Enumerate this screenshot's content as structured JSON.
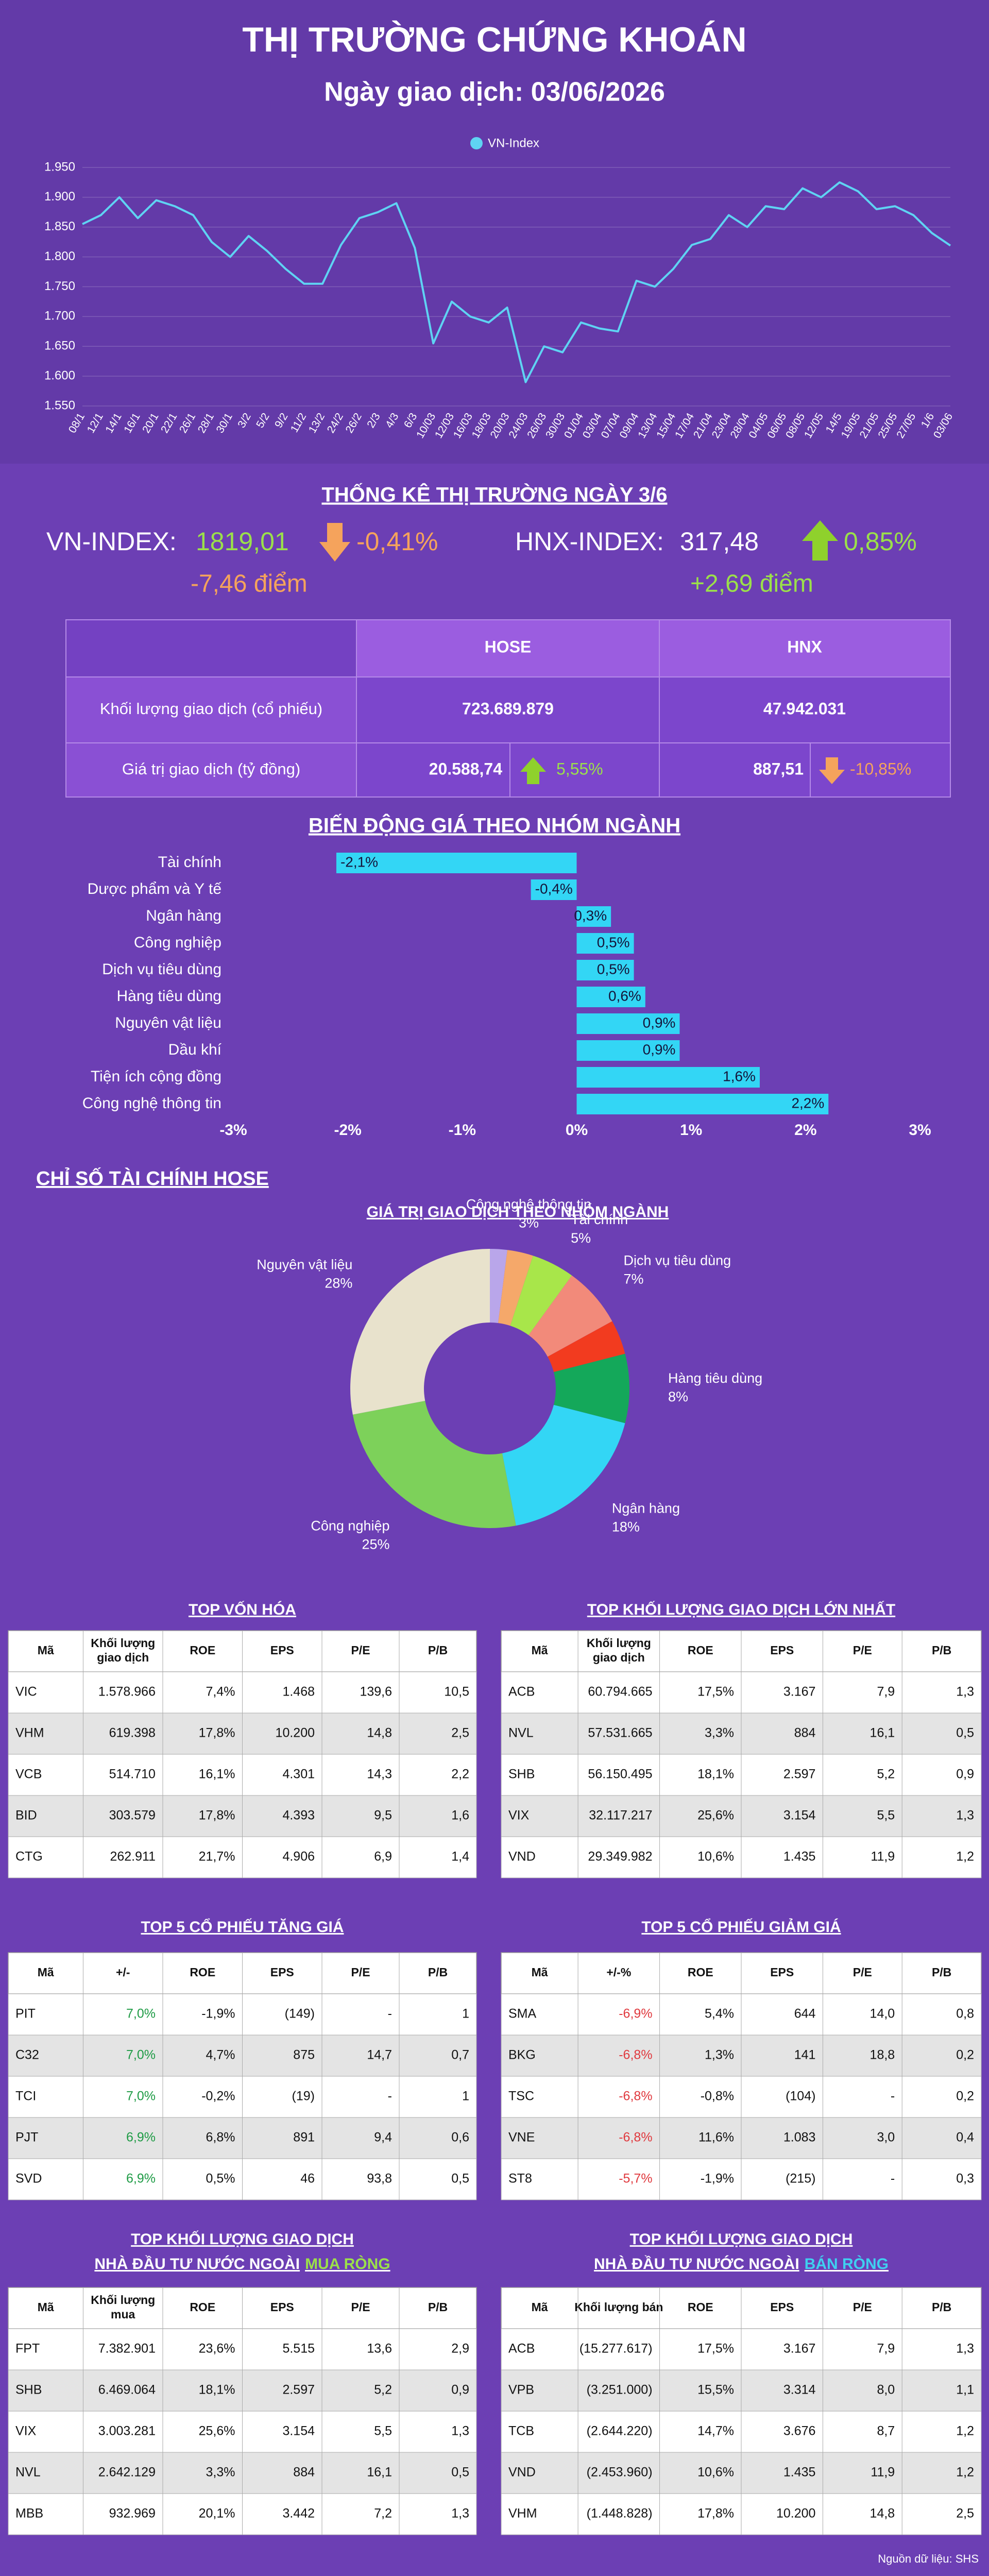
{
  "header": {
    "title": "THỊ TRƯỜNG CHỨNG KHOÁN",
    "subtitle": "Ngày giao dịch: 03/06/2026"
  },
  "chart_data": [
    {
      "type": "line",
      "categories": [
        "08/1",
        "12/1",
        "14/1",
        "16/1",
        "20/1",
        "22/1",
        "26/1",
        "28/1",
        "30/1",
        "3/2",
        "5/2",
        "9/2",
        "11/2",
        "13/2",
        "24/2",
        "26/2",
        "2/3",
        "4/3",
        "6/3",
        "10/03",
        "12/03",
        "16/03",
        "18/03",
        "20/03",
        "24/03",
        "26/03",
        "30/03",
        "01/04",
        "03/04",
        "07/04",
        "09/04",
        "13/04",
        "15/04",
        "17/04",
        "21/04",
        "23/04",
        "28/04",
        "04/05",
        "06/05",
        "08/05",
        "12/05",
        "14/5",
        "19/05",
        "21/05",
        "25/05",
        "27/05",
        "1/6",
        "03/06"
      ],
      "series": [
        {
          "name": "VN-Index",
          "color": "#5fd3f3",
          "values": [
            1855,
            1870,
            1900,
            1865,
            1895,
            1885,
            1870,
            1825,
            1800,
            1835,
            1810,
            1780,
            1755,
            1755,
            1820,
            1865,
            1875,
            1890,
            1815,
            1655,
            1725,
            1700,
            1690,
            1715,
            1590,
            1650,
            1640,
            1690,
            1680,
            1675,
            1760,
            1750,
            1780,
            1820,
            1830,
            1870,
            1850,
            1885,
            1880,
            1915,
            1900,
            1925,
            1910,
            1880,
            1885,
            1870,
            1840,
            1819.01
          ]
        }
      ],
      "ylim": [
        1550,
        1950
      ],
      "yticks": [
        {
          "value": 1550,
          "label": "1.550"
        },
        {
          "value": 1600,
          "label": "1.600"
        },
        {
          "value": 1650,
          "label": "1.650"
        },
        {
          "value": 1700,
          "label": "1.700"
        },
        {
          "value": 1750,
          "label": "1.750"
        },
        {
          "value": 1800,
          "label": "1.800"
        },
        {
          "value": 1850,
          "label": "1.850"
        },
        {
          "value": 1900,
          "label": "1.900"
        },
        {
          "value": 1950,
          "label": "1.950"
        }
      ],
      "grid": true,
      "legend": "top"
    },
    {
      "type": "bar",
      "orientation": "horizontal",
      "title": "BIẾN ĐỘNG GIÁ THEO NHÓM NGÀNH",
      "categories": [
        "Tài chính",
        "Dược phẩm và Y tế",
        "Ngân hàng",
        "Công nghiệp",
        "Dịch vụ tiêu dùng",
        "Hàng tiêu dùng",
        "Nguyên vật liệu",
        "Dầu khí",
        "Tiện ích cộng đồng",
        "Công nghệ thông tin"
      ],
      "values": [
        -2.1,
        -0.4,
        0.3,
        0.5,
        0.5,
        0.6,
        0.9,
        0.9,
        1.6,
        2.2
      ],
      "value_labels": [
        "-2,1%",
        "-0,4%",
        "0,3%",
        "0,5%",
        "0,5%",
        "0,6%",
        "0,9%",
        "0,9%",
        "1,6%",
        "2,2%"
      ],
      "color": "#33d6f5",
      "xlim": [
        -3,
        3
      ],
      "xticks": [
        {
          "value": -3,
          "label": "-3%"
        },
        {
          "value": -2,
          "label": "-2%"
        },
        {
          "value": -1,
          "label": "-1%"
        },
        {
          "value": 0,
          "label": "0%"
        },
        {
          "value": 1,
          "label": "1%"
        },
        {
          "value": 2,
          "label": "2%"
        },
        {
          "value": 3,
          "label": "3%"
        }
      ]
    },
    {
      "type": "pie",
      "title": "GIÁ TRỊ GIAO DỊCH THEO NHÓM NGÀNH",
      "categories": [
        null,
        "Công nghệ thông tin",
        "Tài chính",
        "Dịch vụ tiêu dùng",
        null,
        "Hàng tiêu dùng",
        "Ngân hàng",
        "Công nghiệp",
        "Nguyên vật liệu"
      ],
      "values": [
        2,
        3,
        5,
        7,
        4,
        8,
        18,
        25,
        28
      ],
      "value_labels": [
        null,
        "3%",
        "5%",
        "7%",
        null,
        "8%",
        "18%",
        "25%",
        "28%"
      ],
      "colors": [
        "#b9a6ea",
        "#f5a86a",
        "#a8e64a",
        "#f28a7a",
        "#f23b1f",
        "#14a85a",
        "#33d6f5",
        "#7dd15a",
        "#e8e2cc"
      ]
    }
  ],
  "market_stats": {
    "title": "THỐNG KÊ THỊ TRƯỜNG NGÀY 3/6",
    "vn_index": {
      "label": "VN-INDEX:",
      "value": "1819,01",
      "change_pct": "-0,41%",
      "change_points": "-7,46 điểm"
    },
    "hnx_index": {
      "label": "HNX-INDEX:",
      "value": "317,48",
      "change_pct": "0,85%",
      "change_points": "+2,69 điểm"
    }
  },
  "summary_table": {
    "headers": [
      "HOSE",
      "HNX"
    ],
    "rows": [
      {
        "label": "Khối lượng giao dịch (cổ phiếu)",
        "hose": "723.689.879",
        "hnx": "47.942.031"
      },
      {
        "label": "Giá trị giao dịch (tỷ đồng)",
        "hose": "20.588,74",
        "hose_change": "5,55%",
        "hnx": "887,51",
        "hnx_change": "-10,85%"
      }
    ]
  },
  "section_heading": "CHỈ SỐ TÀI CHÍNH HOSE",
  "tables": [
    {
      "title": "TOP VỐN HÓA",
      "headers": [
        [
          "Mã"
        ],
        [
          "Khối lượng",
          "giao dịch"
        ],
        [
          "ROE"
        ],
        [
          "EPS"
        ],
        [
          "P/E"
        ],
        [
          "P/B"
        ]
      ],
      "rows": [
        [
          "VIC",
          "1.578.966",
          "7,4%",
          "1.468",
          "139,6",
          "10,5"
        ],
        [
          "VHM",
          "619.398",
          "17,8%",
          "10.200",
          "14,8",
          "2,5"
        ],
        [
          "VCB",
          "514.710",
          "16,1%",
          "4.301",
          "14,3",
          "2,2"
        ],
        [
          "BID",
          "303.579",
          "17,8%",
          "4.393",
          "9,5",
          "1,6"
        ],
        [
          "CTG",
          "262.911",
          "21,7%",
          "4.906",
          "6,9",
          "1,4"
        ]
      ]
    },
    {
      "title": "TOP KHỐI LƯỢNG GIAO DỊCH LỚN NHẤT",
      "headers": [
        [
          "Mã"
        ],
        [
          "Khối lượng",
          "giao dịch"
        ],
        [
          "ROE"
        ],
        [
          "EPS"
        ],
        [
          "P/E"
        ],
        [
          "P/B"
        ]
      ],
      "rows": [
        [
          "ACB",
          "60.794.665",
          "17,5%",
          "3.167",
          "7,9",
          "1,3"
        ],
        [
          "NVL",
          "57.531.665",
          "3,3%",
          "884",
          "16,1",
          "0,5"
        ],
        [
          "SHB",
          "56.150.495",
          "18,1%",
          "2.597",
          "5,2",
          "0,9"
        ],
        [
          "VIX",
          "32.117.217",
          "25,6%",
          "3.154",
          "5,5",
          "1,3"
        ],
        [
          "VND",
          "29.349.982",
          "10,6%",
          "1.435",
          "11,9",
          "1,2"
        ]
      ]
    },
    {
      "title": "TOP 5 CỔ PHIẾU TĂNG GIÁ",
      "change_color": "#1e9b45",
      "headers": [
        [
          "Mã"
        ],
        [
          "+/-"
        ],
        [
          "ROE"
        ],
        [
          "EPS"
        ],
        [
          "P/E"
        ],
        [
          "P/B"
        ]
      ],
      "rows": [
        [
          "PIT",
          "7,0%",
          "-1,9%",
          "(149)",
          "-",
          "1"
        ],
        [
          "C32",
          "7,0%",
          "4,7%",
          "875",
          "14,7",
          "0,7"
        ],
        [
          "TCI",
          "7,0%",
          "-0,2%",
          "(19)",
          "-",
          "1"
        ],
        [
          "PJT",
          "6,9%",
          "6,8%",
          "891",
          "9,4",
          "0,6"
        ],
        [
          "SVD",
          "6,9%",
          "0,5%",
          "46",
          "93,8",
          "0,5"
        ]
      ]
    },
    {
      "title": "TOP 5 CỔ PHIẾU GIẢM GIÁ",
      "change_color": "#e0393e",
      "headers": [
        [
          "Mã"
        ],
        [
          "+/-%"
        ],
        [
          "ROE"
        ],
        [
          "EPS"
        ],
        [
          "P/E"
        ],
        [
          "P/B"
        ]
      ],
      "rows": [
        [
          "SMA",
          "-6,9%",
          "5,4%",
          "644",
          "14,0",
          "0,8"
        ],
        [
          "BKG",
          "-6,8%",
          "1,3%",
          "141",
          "18,8",
          "0,2"
        ],
        [
          "TSC",
          "-6,8%",
          "-0,8%",
          "(104)",
          "-",
          "0,2"
        ],
        [
          "VNE",
          "-6,8%",
          "11,6%",
          "1.083",
          "3,0",
          "0,4"
        ],
        [
          "ST8",
          "-5,7%",
          "-1,9%",
          "(215)",
          "-",
          "0,3"
        ]
      ]
    },
    {
      "title_lines": [
        "TOP KHỐI LƯỢNG GIAO DỊCH",
        "NHÀ ĐẦU TƯ NƯỚC NGOÀI"
      ],
      "title_highlight": "MUA RÒNG",
      "highlight_color": "#9be04a",
      "headers": [
        [
          "Mã"
        ],
        [
          "Khối lượng",
          "mua"
        ],
        [
          "ROE"
        ],
        [
          "EPS"
        ],
        [
          "P/E"
        ],
        [
          "P/B"
        ]
      ],
      "rows": [
        [
          "FPT",
          "7.382.901",
          "23,6%",
          "5.515",
          "13,6",
          "2,9"
        ],
        [
          "SHB",
          "6.469.064",
          "18,1%",
          "2.597",
          "5,2",
          "0,9"
        ],
        [
          "VIX",
          "3.003.281",
          "25,6%",
          "3.154",
          "5,5",
          "1,3"
        ],
        [
          "NVL",
          "2.642.129",
          "3,3%",
          "884",
          "16,1",
          "0,5"
        ],
        [
          "MBB",
          "932.969",
          "20,1%",
          "3.442",
          "7,2",
          "1,3"
        ]
      ]
    },
    {
      "title_lines": [
        "TOP KHỐI LƯỢNG GIAO DỊCH",
        "NHÀ ĐẦU TƯ NƯỚC NGOÀI"
      ],
      "title_highlight": "BÁN RÒNG",
      "highlight_color": "#3fd0f0",
      "headers": [
        [
          "Mã"
        ],
        [
          "Khối lượng bán"
        ],
        [
          "ROE"
        ],
        [
          "EPS"
        ],
        [
          "P/E"
        ],
        [
          "P/B"
        ]
      ],
      "rows": [
        [
          "ACB",
          "(15.277.617)",
          "17,5%",
          "3.167",
          "7,9",
          "1,3"
        ],
        [
          "VPB",
          "(3.251.000)",
          "15,5%",
          "3.314",
          "8,0",
          "1,1"
        ],
        [
          "TCB",
          "(2.644.220)",
          "14,7%",
          "3.676",
          "8,7",
          "1,2"
        ],
        [
          "VND",
          "(2.453.960)",
          "10,6%",
          "1.435",
          "11,9",
          "1,2"
        ],
        [
          "VHM",
          "(1.448.828)",
          "17,8%",
          "10.200",
          "14,8",
          "2,5"
        ]
      ]
    }
  ],
  "source": "Nguồn dữ liệu: SHS"
}
